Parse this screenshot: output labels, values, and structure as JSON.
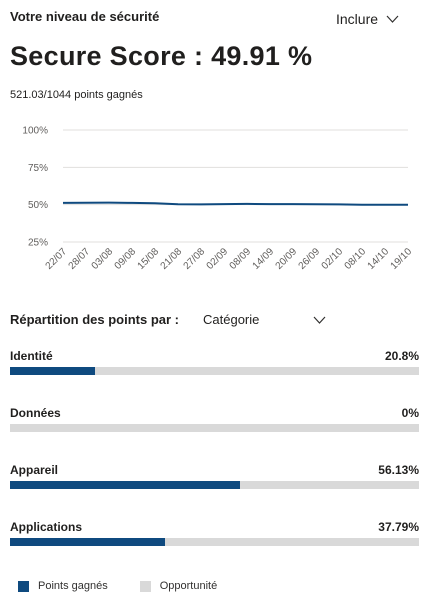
{
  "header": {
    "title": "Votre niveau de sécurité",
    "include_label": "Inclure",
    "score_text": "Secure Score : 49.91 %",
    "points_text": "521.03/1044 points gagnés"
  },
  "chart_data": {
    "type": "line",
    "x": [
      "22/07",
      "28/07",
      "03/08",
      "09/08",
      "15/08",
      "21/08",
      "27/08",
      "02/09",
      "08/09",
      "14/09",
      "20/09",
      "26/09",
      "02/10",
      "08/10",
      "14/10",
      "19/10"
    ],
    "yticks": [
      "100%",
      "75%",
      "50%",
      "25%"
    ],
    "ylim": [
      25,
      100
    ],
    "series": [
      {
        "values": [
          51.2,
          51.3,
          51.4,
          51.2,
          50.9,
          50.3,
          50.2,
          50.4,
          50.5,
          50.4,
          50.4,
          50.3,
          50.2,
          50.0,
          50.0,
          49.91
        ]
      }
    ],
    "grid": true,
    "line_color": "#0f4a7f"
  },
  "breakdown": {
    "label": "Répartition des points par :",
    "selected": "Catégorie",
    "rows": [
      {
        "label": "Identité",
        "pct": "20.8%",
        "fraction": 0.208
      },
      {
        "label": "Données",
        "pct": "0%",
        "fraction": 0.0
      },
      {
        "label": "Appareil",
        "pct": "56.13%",
        "fraction": 0.5613
      },
      {
        "label": "Applications",
        "pct": "37.79%",
        "fraction": 0.3779
      }
    ]
  },
  "legend": {
    "earned": "Points gagnés",
    "opportunity": "Opportunité",
    "earned_color": "#0f4a7f",
    "opportunity_color": "#d9d9d9"
  }
}
